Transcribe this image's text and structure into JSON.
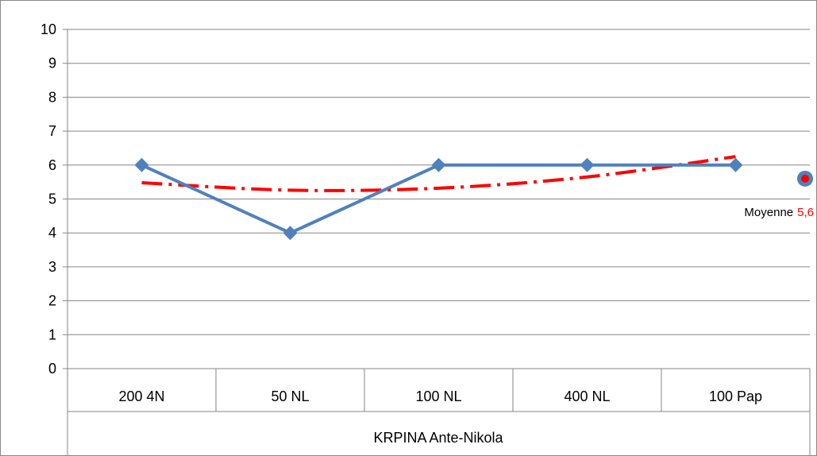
{
  "chart_data": {
    "type": "line",
    "categories": [
      "200 4N",
      "50 NL",
      "100 NL",
      "400 NL",
      "100 Pap"
    ],
    "group_label": "KRPINA Ante-Nikola",
    "ylim": [
      0,
      10
    ],
    "yticks": [
      0,
      1,
      2,
      3,
      4,
      5,
      6,
      7,
      8,
      9,
      10
    ],
    "grid": true,
    "series": [
      {
        "values": [
          6,
          4,
          6,
          6,
          6
        ],
        "color": "#4f81bd",
        "marker": "diamond"
      }
    ],
    "trendline": {
      "type": "polynomial",
      "style": "dash-dot",
      "color": "#ff0000",
      "values": [
        5.48,
        5.26,
        5.32,
        5.65,
        6.25
      ]
    },
    "average": {
      "label": "Moyenne",
      "value_text": "5,6",
      "value": 5.6,
      "marker_color": "#ff0000",
      "marker_ring_color": "#4f81bd"
    }
  }
}
